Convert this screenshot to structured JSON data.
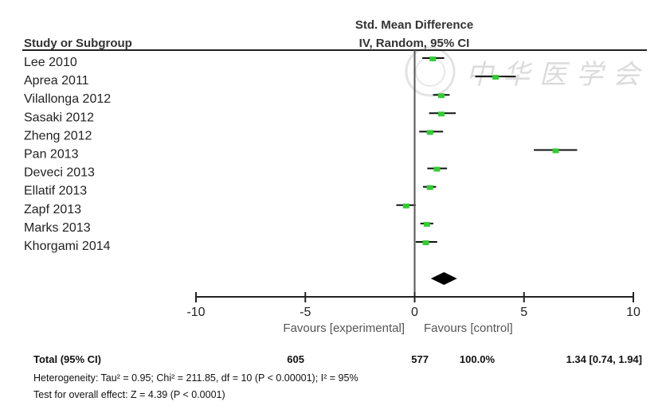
{
  "chart_data": {
    "type": "forest",
    "header": {
      "study_col": "Study or Subgroup",
      "effect_title": "Std. Mean Difference",
      "effect_method": "IV, Random, 95% CI"
    },
    "studies": [
      {
        "name": "Lee 2010",
        "smd": 0.83,
        "lower": 0.35,
        "upper": 1.35
      },
      {
        "name": "Aprea 2011",
        "smd": 3.7,
        "lower": 2.77,
        "upper": 4.63
      },
      {
        "name": "Vilallonga 2012",
        "smd": 1.22,
        "lower": 0.84,
        "upper": 1.6
      },
      {
        "name": "Sasaki 2012",
        "smd": 1.22,
        "lower": 0.66,
        "upper": 1.88
      },
      {
        "name": "Zheng 2012",
        "smd": 0.7,
        "lower": 0.21,
        "upper": 1.3
      },
      {
        "name": "Pan 2013",
        "smd": 6.45,
        "lower": 5.45,
        "upper": 7.43
      },
      {
        "name": "Deveci 2013",
        "smd": 1.02,
        "lower": 0.58,
        "upper": 1.48
      },
      {
        "name": "Ellatif 2013",
        "smd": 0.7,
        "lower": 0.38,
        "upper": 0.98
      },
      {
        "name": "Zapf 2013",
        "smd": -0.39,
        "lower": -0.84,
        "upper": 0.05
      },
      {
        "name": "Marks 2013",
        "smd": 0.56,
        "lower": 0.26,
        "upper": 0.85
      },
      {
        "name": "Khorgami 2014",
        "smd": 0.51,
        "lower": 0.05,
        "upper": 1.03
      }
    ],
    "pooled": {
      "smd": 1.34,
      "lower": 0.74,
      "upper": 1.94
    },
    "xlim": [
      -10,
      10
    ],
    "xticks": [
      "-10",
      "-5",
      "0",
      "5",
      "10"
    ],
    "xtick_values": [
      -10,
      -5,
      0,
      5,
      10
    ],
    "favours_left": "Favours [experimental]",
    "favours_right": "Favours [control]",
    "colors": {
      "point": "#33cc33",
      "line": "#111111",
      "diamond": "#000000"
    }
  },
  "footer": {
    "total_label": "Total (95% CI)",
    "total_experimental": "605",
    "total_control": "577",
    "total_weight": "100.0%",
    "total_effect": "1.34 [0.74, 1.94]",
    "heterogeneity": "Heterogeneity: Tau² = 0.95; Chi² = 211.85, df = 10 (P < 0.00001); I² = 95%",
    "overall_effect": "Test for overall effect: Z = 4.39 (P < 0.0001)"
  },
  "watermark": {
    "text": "中华医学会"
  }
}
